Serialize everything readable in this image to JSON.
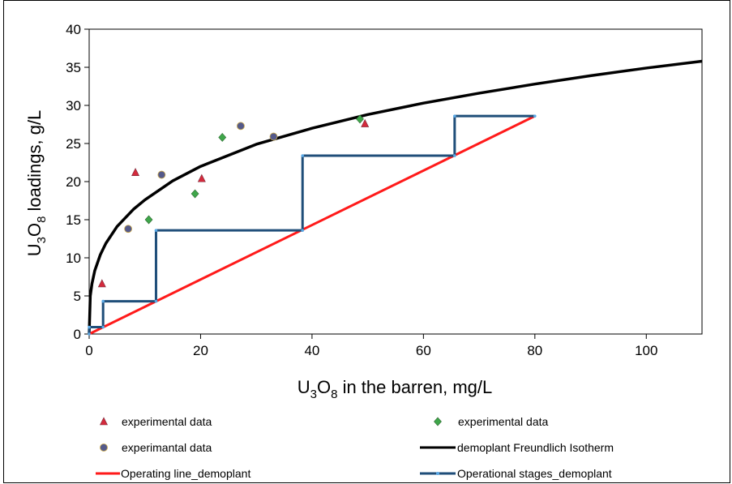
{
  "chart_data": {
    "type": "scatter",
    "xlabel_parts": [
      "U",
      "3",
      "O",
      "8",
      " in the barren, mg/L"
    ],
    "ylabel_parts": [
      "U",
      "3",
      "O",
      "8",
      " loadings, g/L"
    ],
    "xlim": [
      0,
      110
    ],
    "ylim": [
      0,
      40
    ],
    "x_ticks": [
      0,
      20,
      40,
      60,
      80,
      100
    ],
    "y_ticks": [
      0,
      5,
      10,
      15,
      20,
      25,
      30,
      35,
      40
    ],
    "x_tick_labels": [
      "0",
      "20",
      "40",
      "60",
      "80",
      "100"
    ],
    "y_tick_labels": [
      "0",
      "5",
      "10",
      "15",
      "20",
      "25",
      "30",
      "35",
      "40"
    ],
    "grid": false,
    "legend_placement": "bottom",
    "series": [
      {
        "name": "experimental data",
        "kind": "markers",
        "marker": "triangle",
        "color": "#d42a3c",
        "x": [
          2.3,
          8.3,
          20.2,
          49.5
        ],
        "y": [
          6.6,
          21.2,
          20.4,
          27.6
        ]
      },
      {
        "name": "experimental data",
        "kind": "markers",
        "marker": "diamond",
        "color": "#3fa64a",
        "x": [
          10.7,
          19.0,
          23.9,
          48.6
        ],
        "y": [
          15.0,
          18.4,
          25.8,
          28.2
        ]
      },
      {
        "name": "experimantal data",
        "kind": "markers",
        "marker": "circle",
        "color": "#555a8a",
        "x": [
          7.0,
          13.0,
          27.2,
          33.1
        ],
        "y": [
          13.8,
          20.9,
          27.3,
          25.9
        ]
      },
      {
        "name": "demoplant Freundlich Isotherm",
        "kind": "curve",
        "color": "#000000",
        "x": [
          0,
          0.2,
          0.5,
          1,
          2,
          3,
          5,
          8,
          10,
          15,
          20,
          30,
          40,
          50,
          60,
          70,
          80,
          90,
          100,
          110
        ],
        "y": [
          0,
          5.0,
          6.6,
          8.3,
          10.4,
          11.9,
          14.1,
          16.4,
          17.6,
          20.1,
          22.0,
          24.9,
          27.0,
          28.8,
          30.3,
          31.6,
          32.8,
          33.9,
          34.9,
          35.8
        ]
      },
      {
        "name": "Operating line_demoplant",
        "kind": "line",
        "color": "#ff1a1a",
        "x": [
          0,
          80
        ],
        "y": [
          0,
          28.6
        ]
      },
      {
        "name": "Operational stages_demoplant",
        "kind": "step",
        "color": "#1f4e79",
        "x": [
          0,
          0,
          2.5,
          2.5,
          12,
          12,
          38.3,
          38.3,
          65.6,
          65.6,
          80
        ],
        "y": [
          0,
          0.9,
          0.9,
          4.3,
          4.3,
          13.6,
          13.6,
          23.4,
          23.4,
          28.6,
          28.6
        ]
      }
    ],
    "legend": [
      {
        "label": "experimental data",
        "marker": "triangle",
        "color": "#d42a3c",
        "position": "left"
      },
      {
        "label": "experimental data",
        "marker": "diamond",
        "color": "#3fa64a",
        "position": "right"
      },
      {
        "label": "experimantal data",
        "marker": "circle",
        "color": "#555a8a",
        "position": "left"
      },
      {
        "label": "demoplant Freundlich Isotherm",
        "marker": "line",
        "color": "#000000",
        "position": "right"
      },
      {
        "label": "Operating line_demoplant",
        "marker": "line",
        "color": "#ff1a1a",
        "position": "left"
      },
      {
        "label": "Operational stages_demoplant",
        "marker": "line-dot",
        "color": "#1f4e79",
        "position": "right"
      }
    ]
  }
}
